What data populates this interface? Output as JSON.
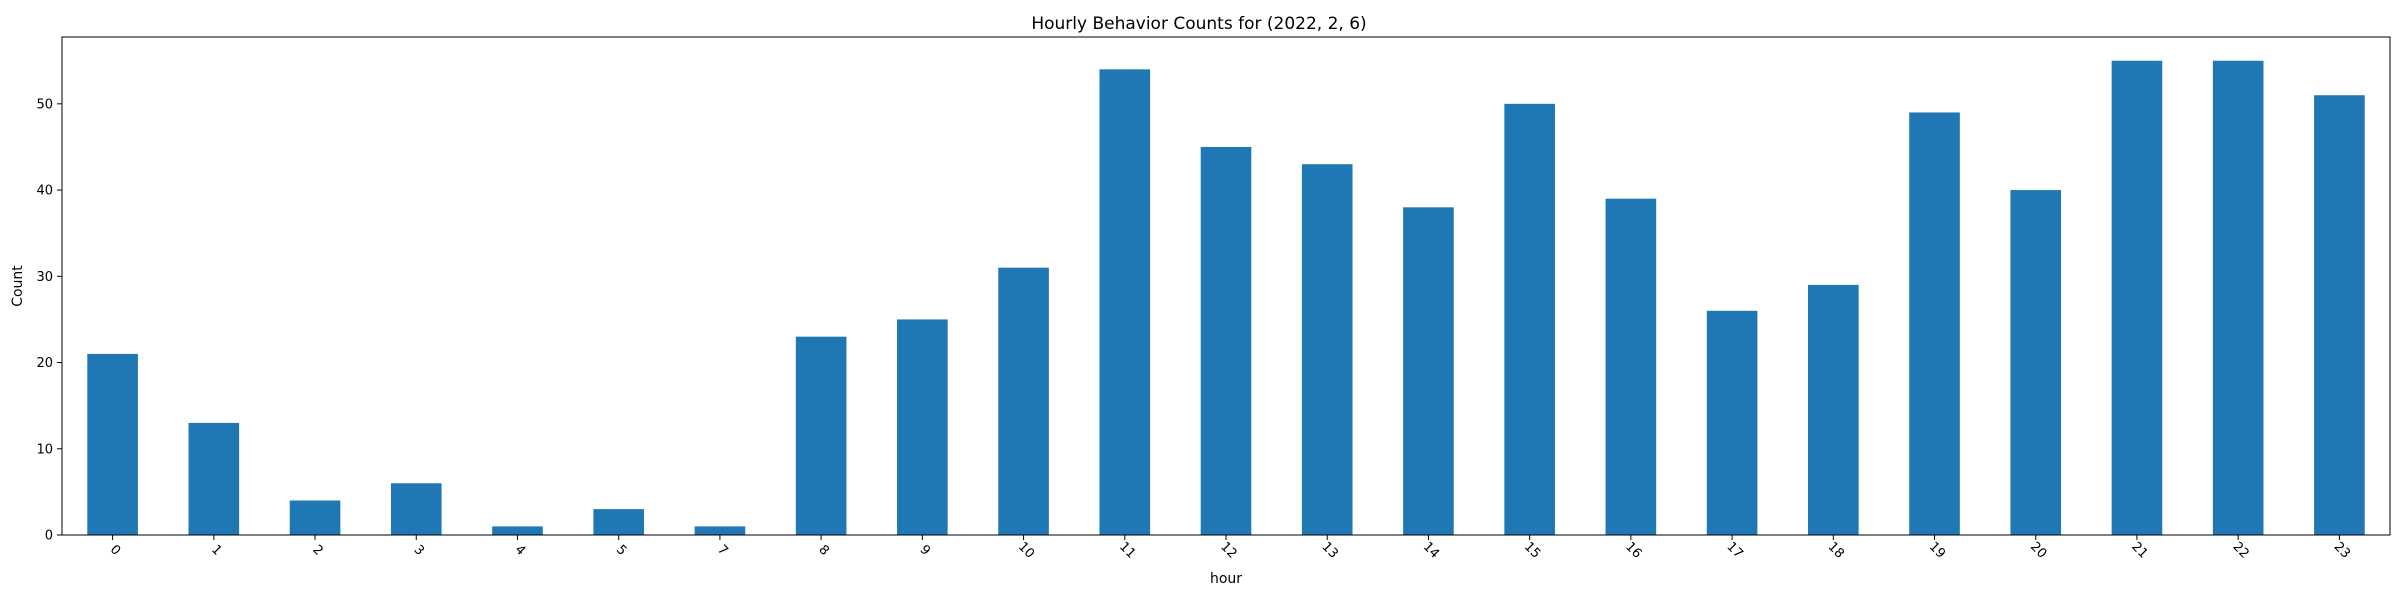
{
  "chart_data": {
    "type": "bar",
    "title": "Hourly Behavior Counts for (2022, 2, 6)",
    "xlabel": "hour",
    "ylabel": "Count",
    "categories": [
      "0",
      "1",
      "2",
      "3",
      "4",
      "5",
      "7",
      "8",
      "9",
      "10",
      "11",
      "12",
      "13",
      "14",
      "15",
      "16",
      "17",
      "18",
      "19",
      "20",
      "21",
      "22",
      "23"
    ],
    "values": [
      21,
      13,
      4,
      6,
      1,
      3,
      1,
      23,
      25,
      31,
      54,
      45,
      43,
      38,
      50,
      39,
      26,
      29,
      49,
      40,
      55,
      55,
      51
    ],
    "ylim": [
      0,
      57.75
    ],
    "yticks": [
      0,
      10,
      20,
      30,
      40,
      50
    ],
    "bar_color": "#1f77b4",
    "grid": false,
    "legend": "none"
  }
}
